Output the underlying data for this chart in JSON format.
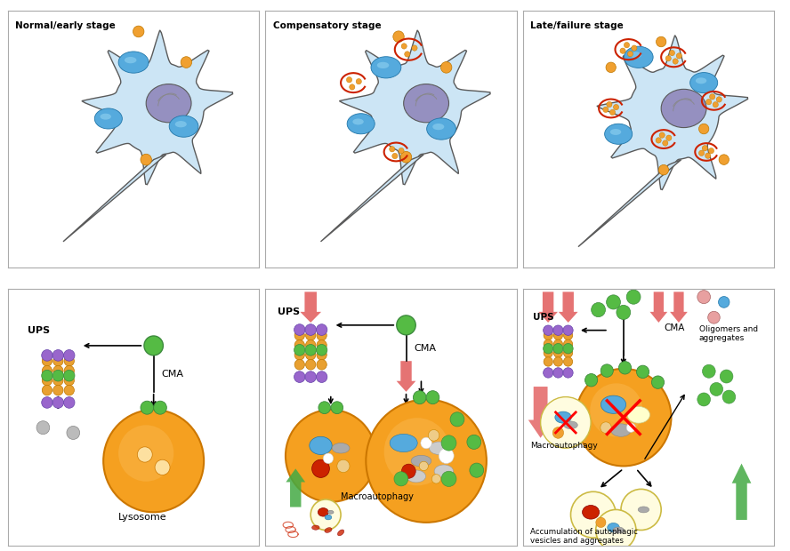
{
  "panel_titles": [
    "Normal/early stage",
    "Compensatory stage",
    "Late/failure stage"
  ],
  "colors": {
    "cell_body": "#cce5f5",
    "cell_border": "#5a5a5a",
    "nucleus": "#9590c0",
    "blue_org": "#55aadd",
    "blue_org_light": "#88ccee",
    "orange_dot": "#f0a030",
    "lysosome_orange": "#f5a020",
    "lysosome_light": "#fcd080",
    "green_receptor": "#55bb44",
    "purple_cap": "#9966cc",
    "gold_barrel": "#e8a838",
    "gray_blob": "#aaaaaa",
    "gray_light": "#cccccc",
    "red_ring": "#cc2200",
    "red_arrow": "#dd4444",
    "green_arrow": "#44aa44",
    "white": "#ffffff",
    "cream": "#fffce8",
    "pink": "#e8aaaa",
    "dark_red": "#aa0000",
    "panel_border": "#999999"
  }
}
